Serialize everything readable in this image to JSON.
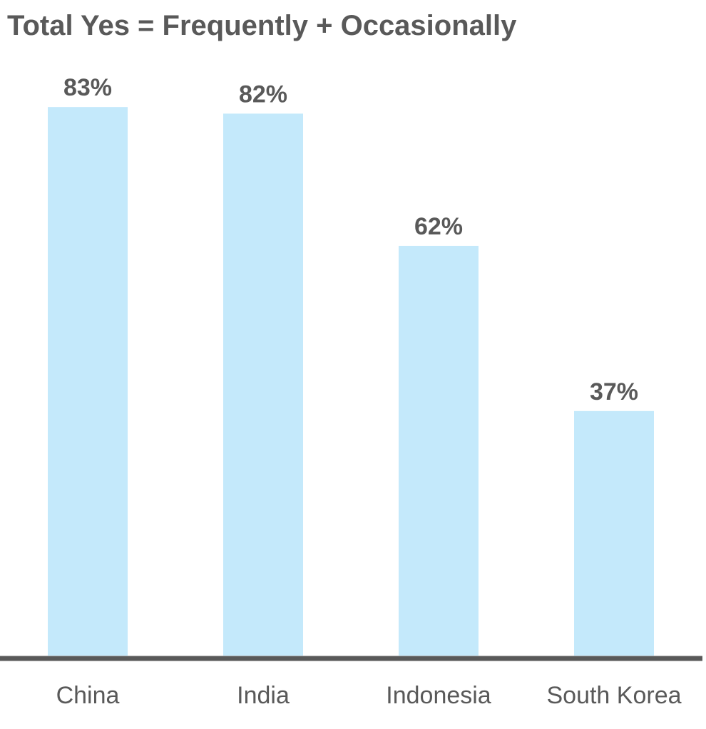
{
  "chart_data": {
    "type": "bar",
    "title": "Total Yes = Frequently + Occasionally",
    "categories": [
      "China",
      "India",
      "Indonesia",
      "South Korea"
    ],
    "values": [
      83,
      82,
      62,
      37
    ],
    "value_labels": [
      "83%",
      "82%",
      "62%",
      "37%"
    ],
    "ylim": [
      0,
      100
    ],
    "grid": false,
    "colors": {
      "bar": "#c4e9fb",
      "text": "#595959",
      "axis": "#595959"
    }
  }
}
